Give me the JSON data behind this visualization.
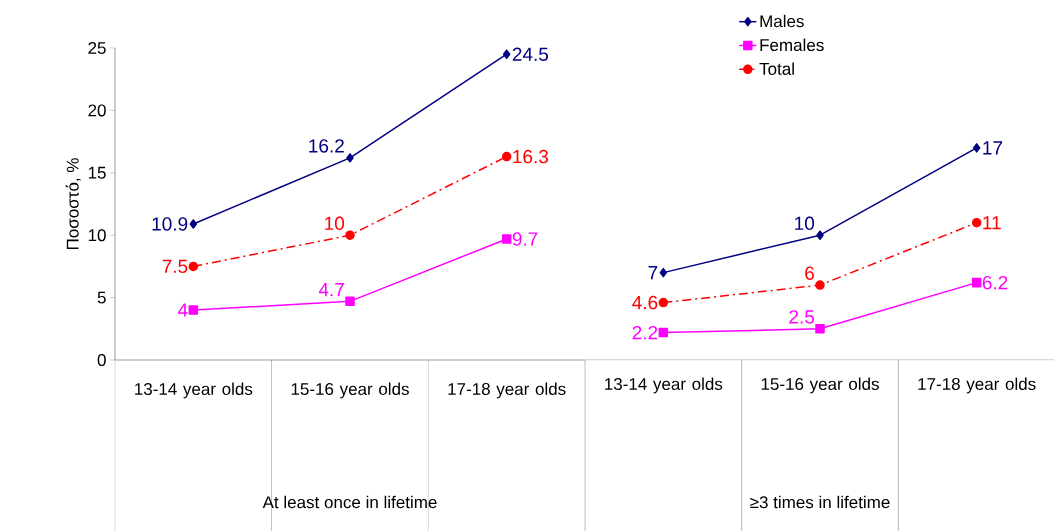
{
  "chart_data": [
    {
      "type": "line",
      "categories": [
        "13-14 year olds",
        "15-16 year olds",
        "17-18 year olds"
      ],
      "xlabel": "At least once in lifetime",
      "ylabel": "Ποσοστό, %",
      "ylim": [
        0,
        25
      ],
      "yticks": [
        0,
        5,
        10,
        15,
        20,
        25
      ],
      "data_labels": true,
      "series": [
        {
          "color": "#000080",
          "marker": "diamond",
          "line_style": "solid",
          "values": [
            10.9,
            16.2,
            24.5
          ]
        },
        {
          "color": "#ff00ff",
          "marker": "square",
          "line_style": "solid",
          "values": [
            4,
            4.7,
            9.7
          ]
        },
        {
          "color": "#ff0000",
          "marker": "circle",
          "line_style": "dashed",
          "values": [
            7.5,
            10,
            16.3
          ]
        }
      ]
    },
    {
      "type": "line",
      "categories": [
        "13-14 year olds",
        "15-16 year olds",
        "17-18 year olds"
      ],
      "xlabel": "≥3 times in lifetime",
      "ylim": [
        0,
        25
      ],
      "tick_labels": "x",
      "data_labels": true,
      "legend": "top",
      "series": [
        {
          "name": "Males",
          "color": "#000080",
          "marker": "diamond",
          "line_style": "solid",
          "values": [
            7,
            10,
            17
          ]
        },
        {
          "name": "Females",
          "color": "#ff00ff",
          "marker": "square",
          "line_style": "solid",
          "values": [
            2.2,
            2.5,
            6.2
          ]
        },
        {
          "name": "Total",
          "color": "#ff0000",
          "marker": "circle",
          "line_style": "dashed",
          "values": [
            4.6,
            6,
            11
          ]
        }
      ]
    }
  ]
}
